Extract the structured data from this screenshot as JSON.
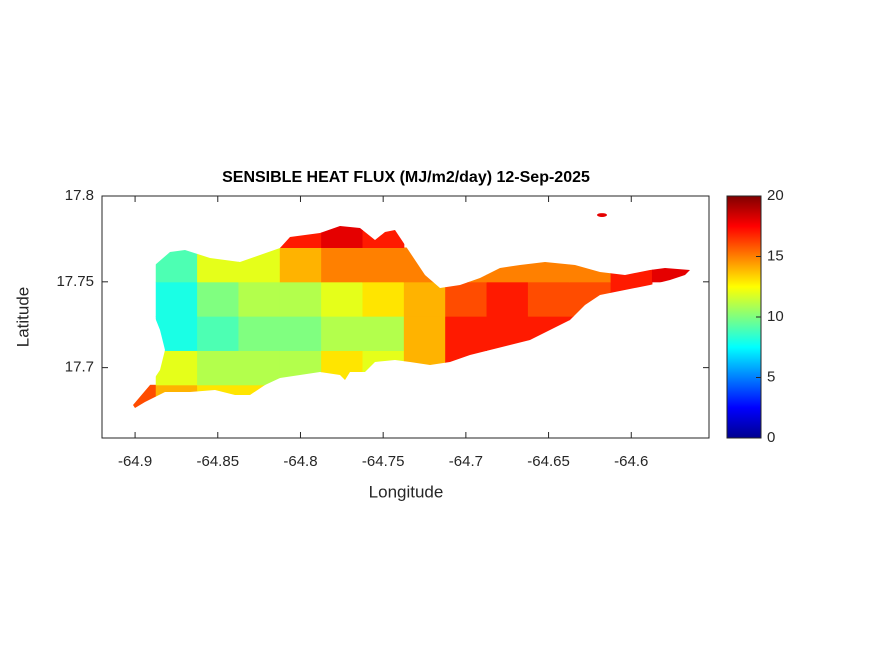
{
  "chart_data": {
    "type": "map",
    "title": "SENSIBLE HEAT FLUX (MJ/m2/day) 12-Sep-2025",
    "xlabel": "Longitude",
    "ylabel": "Latitude",
    "xlim": [
      -64.92,
      -64.553
    ],
    "ylim": [
      17.659,
      17.8
    ],
    "xticks": [
      -64.9,
      -64.85,
      -64.8,
      -64.75,
      -64.7,
      -64.65,
      -64.6
    ],
    "yticks": [
      17.7,
      17.75,
      17.8
    ],
    "colormap": "jet",
    "clim": [
      0,
      20
    ],
    "cticks": [
      0,
      5,
      10,
      15,
      20
    ],
    "grid_lon": [
      -64.9,
      -64.875,
      -64.85,
      -64.825,
      -64.8,
      -64.775,
      -64.75,
      -64.725,
      -64.7,
      -64.675,
      -64.65,
      -64.625,
      -64.6,
      -64.575
    ],
    "grid_lat": [
      17.68,
      17.7,
      17.72,
      17.74,
      17.76,
      17.78
    ],
    "values": [
      [
        16,
        14,
        13,
        13,
        13,
        null,
        null,
        null,
        null,
        null,
        null,
        null,
        null,
        null
      ],
      [
        null,
        12,
        11,
        11,
        11,
        13,
        12,
        14,
        17,
        null,
        null,
        null,
        null,
        null
      ],
      [
        null,
        8,
        9,
        10,
        10,
        11,
        11,
        14,
        17,
        17,
        17,
        17,
        null,
        null
      ],
      [
        null,
        8,
        10,
        11,
        11,
        12,
        13,
        14,
        16,
        17,
        16,
        16,
        17,
        null
      ],
      [
        null,
        9,
        12,
        12,
        14,
        15,
        15,
        15,
        15,
        15,
        15,
        15,
        17,
        18
      ],
      [
        null,
        null,
        null,
        null,
        17,
        18,
        17,
        null,
        null,
        null,
        null,
        18,
        null,
        null
      ]
    ]
  }
}
